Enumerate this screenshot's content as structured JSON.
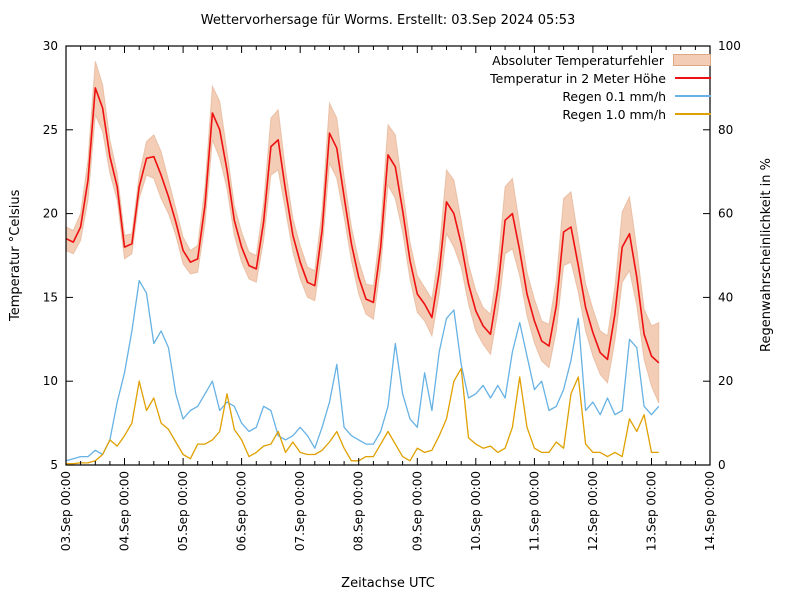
{
  "title": "Wettervorhersage für Worms. Erstellt: 03.Sep 2024 05:53",
  "axes": {
    "x_label": "Zeitachse UTC",
    "y_left_label": "Temperatur °Celsius",
    "y_right_label": "Regenwahrscheinlichkeit in %",
    "x_tick_labels": [
      "03.Sep 00:00",
      "04.Sep 00:00",
      "05.Sep 00:00",
      "06.Sep 00:00",
      "07.Sep 00:00",
      "08.Sep 00:00",
      "09.Sep 00:00",
      "10.Sep 00:00",
      "11.Sep 00:00",
      "12.Sep 00:00",
      "13.Sep 00:00",
      "14.Sep 00:00"
    ],
    "y_left_ticks": [
      5,
      10,
      15,
      20,
      25,
      30
    ],
    "y_right_ticks": [
      0,
      20,
      40,
      60,
      80,
      100
    ]
  },
  "legend": [
    {
      "label": "Absoluter Temperaturfehler",
      "type": "band",
      "color": "#f3cdb6",
      "border": "#dfa884"
    },
    {
      "label": "Temperatur in 2 Meter Höhe",
      "type": "line",
      "color": "#ee1111"
    },
    {
      "label": "Regen 0.1 mm/h",
      "type": "line",
      "color": "#67b2e4"
    },
    {
      "label": "Regen 1.0 mm/h",
      "type": "line",
      "color": "#dfa000"
    }
  ],
  "chart_data": {
    "type": "line",
    "title": "Wettervorhersage für Worms. Erstellt: 03.Sep 2024 05:53",
    "xlabel": "Zeitachse UTC",
    "ylabel_left": "Temperatur °Celsius",
    "ylabel_right": "Regenwahrscheinlichkeit in %",
    "ylim_left": [
      5,
      30
    ],
    "ylim_right": [
      0,
      100
    ],
    "x_range_hours": [
      0,
      264
    ],
    "x_unit": "hours since 03.Sep 2024 00:00 UTC",
    "x_day_tick_step_hours": 24,
    "x_minor_tick_hours": 6,
    "grid": false,
    "legend_position": "top-right-inside",
    "x_hours": [
      0,
      3,
      6,
      9,
      12,
      15,
      18,
      21,
      24,
      27,
      30,
      33,
      36,
      39,
      42,
      45,
      48,
      51,
      54,
      57,
      60,
      63,
      66,
      69,
      72,
      75,
      78,
      81,
      84,
      87,
      90,
      93,
      96,
      99,
      102,
      105,
      108,
      111,
      114,
      117,
      120,
      123,
      126,
      129,
      132,
      135,
      138,
      141,
      144,
      147,
      150,
      153,
      156,
      159,
      162,
      165,
      168,
      171,
      174,
      177,
      180,
      183,
      186,
      189,
      192,
      195,
      198,
      201,
      204,
      207,
      210,
      213,
      216,
      219,
      222,
      225,
      228,
      231,
      234,
      237,
      240,
      243
    ],
    "series": [
      {
        "key": "temperature",
        "name": "Temperatur in 2 Meter Höhe",
        "unit": "°C",
        "axis": "left",
        "color": "#ee1111",
        "values": [
          18.5,
          18.3,
          19.2,
          22.0,
          27.5,
          26.3,
          23.4,
          21.6,
          18.0,
          18.2,
          21.6,
          23.3,
          23.4,
          22.3,
          21.0,
          19.5,
          17.8,
          17.1,
          17.3,
          20.5,
          26.0,
          25.0,
          22.6,
          19.6,
          18.0,
          16.9,
          16.7,
          19.5,
          24.0,
          24.4,
          21.4,
          18.7,
          17.1,
          15.9,
          15.7,
          19.0,
          24.8,
          23.9,
          21.0,
          18.2,
          16.2,
          14.9,
          14.7,
          18.0,
          23.5,
          22.8,
          20.2,
          17.2,
          15.2,
          14.6,
          13.8,
          16.5,
          20.7,
          20.0,
          18.2,
          15.8,
          14.2,
          13.3,
          12.8,
          15.5,
          19.6,
          20.0,
          17.8,
          15.2,
          13.6,
          12.4,
          12.1,
          14.5,
          18.9,
          19.2,
          16.9,
          14.4,
          12.9,
          11.7,
          11.3,
          14.0,
          18.0,
          18.8,
          16.2,
          12.8,
          11.5,
          11.1
        ]
      },
      {
        "key": "temperature_error",
        "name": "Absoluter Temperaturfehler (Halbbreite des Bandes)",
        "unit": "°C",
        "axis": "left",
        "color": "#f3cdb6",
        "edge": "#dfa884",
        "values": [
          0.7,
          0.7,
          0.8,
          1.2,
          1.6,
          1.4,
          1.0,
          0.8,
          0.7,
          0.6,
          0.7,
          1.0,
          1.3,
          1.4,
          1.0,
          0.8,
          0.8,
          0.7,
          0.8,
          1.1,
          1.6,
          1.7,
          1.1,
          0.9,
          0.9,
          0.8,
          0.8,
          1.1,
          1.7,
          1.8,
          1.2,
          1.0,
          1.0,
          0.9,
          0.9,
          1.2,
          1.8,
          1.8,
          1.2,
          1.0,
          1.0,
          0.9,
          1.0,
          1.2,
          1.8,
          1.9,
          1.3,
          1.1,
          1.1,
          1.0,
          1.1,
          1.3,
          1.9,
          2.0,
          1.4,
          1.2,
          1.2,
          1.1,
          1.2,
          1.4,
          2.0,
          2.1,
          1.5,
          1.3,
          1.3,
          1.2,
          1.3,
          1.5,
          2.0,
          2.1,
          1.6,
          1.4,
          1.4,
          1.3,
          1.4,
          1.6,
          2.1,
          2.2,
          1.7,
          1.5,
          1.8,
          2.4
        ]
      },
      {
        "key": "rain_01",
        "name": "Regen 0.1 mm/h",
        "unit": "%",
        "axis": "right",
        "color": "#67b2e4",
        "values": [
          1,
          1.5,
          2,
          2,
          3.5,
          2.5,
          6,
          15,
          22,
          32,
          44,
          41,
          29,
          32,
          28,
          17,
          11,
          13,
          14,
          17,
          20,
          13,
          15,
          14,
          10,
          8,
          9,
          14,
          13,
          7,
          6,
          7,
          9,
          7,
          4,
          9,
          15,
          24,
          9,
          7,
          6,
          5,
          5,
          8,
          14,
          29,
          17,
          11,
          9,
          22,
          13,
          27,
          35,
          37,
          24,
          16,
          17,
          19,
          16,
          19,
          16,
          27,
          34,
          26,
          18,
          20,
          13,
          14,
          18,
          25,
          35,
          13,
          15,
          12,
          16,
          12,
          13,
          30,
          28,
          14,
          12,
          14
        ]
      },
      {
        "key": "rain_10",
        "name": "Regen 1.0 mm/h",
        "unit": "%",
        "axis": "right",
        "color": "#dfa000",
        "values": [
          0.3,
          0.3,
          0.5,
          0.5,
          1,
          2.5,
          6,
          4.5,
          7,
          10,
          20,
          13,
          16,
          10,
          8.5,
          5.5,
          2.5,
          1.5,
          5,
          5,
          6,
          8,
          17,
          8.5,
          6,
          2,
          3,
          4.5,
          5,
          8,
          3,
          5.5,
          3,
          2.5,
          2.5,
          3.5,
          5.5,
          8,
          4,
          1,
          1,
          2,
          2,
          5,
          8,
          5,
          2,
          1,
          4,
          3,
          3.5,
          7,
          11,
          20,
          23,
          6.5,
          5,
          4,
          4.5,
          3,
          4,
          9,
          21,
          9,
          4,
          3,
          3,
          5.5,
          4,
          17,
          21,
          5,
          3,
          3,
          2,
          3,
          2,
          11,
          8,
          12,
          3,
          3
        ]
      }
    ]
  }
}
